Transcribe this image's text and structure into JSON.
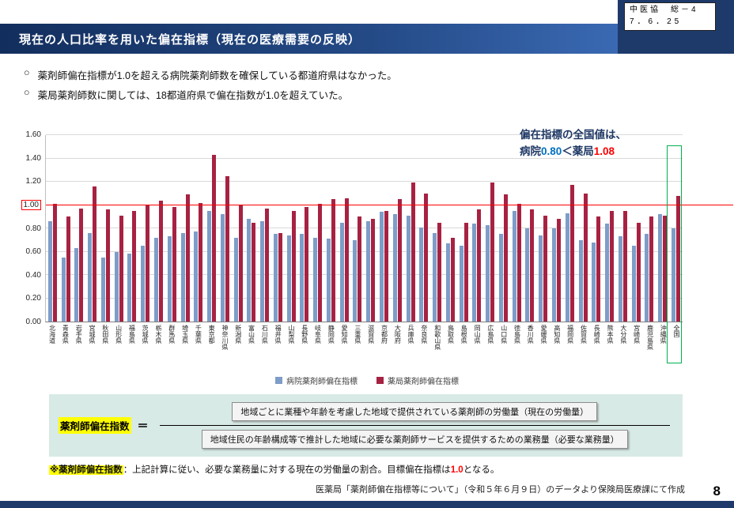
{
  "doc_ref": {
    "line1": "中医協　総－4",
    "line2": "7．6．25"
  },
  "title": "現在の人口比率を用いた偏在指標（現在の医療需要の反映）",
  "bullet_marker": "○",
  "bullets": [
    "薬剤師偏在指標が1.0を超える病院薬剤師数を確保している都道府県はなかった。",
    "薬局薬剤師数に関しては、18都道府県で偏在指数が1.0を超えていた。"
  ],
  "annotation": {
    "line1": "偏在指標の全国値は、",
    "hospital_label": "病院",
    "hospital_value": "0.80",
    "comparator": "＜",
    "pharmacy_label": "薬局",
    "pharmacy_value": "1.08"
  },
  "chart_data": {
    "type": "bar",
    "title": "",
    "xlabel": "",
    "ylabel": "",
    "ylim": [
      0,
      1.6
    ],
    "ytick_step": 0.2,
    "reference_line": 1.0,
    "grid": true,
    "legend_position": "bottom",
    "categories": [
      "北海道",
      "青森県",
      "岩手県",
      "宮城県",
      "秋田県",
      "山形県",
      "福島県",
      "茨城県",
      "栃木県",
      "群馬県",
      "埼玉県",
      "千葉県",
      "東京都",
      "神奈川県",
      "新潟県",
      "富山県",
      "石川県",
      "福井県",
      "山梨県",
      "長野県",
      "岐阜県",
      "静岡県",
      "愛知県",
      "三重県",
      "滋賀県",
      "京都府",
      "大阪府",
      "兵庫県",
      "奈良県",
      "和歌山県",
      "鳥取県",
      "島根県",
      "岡山県",
      "広島県",
      "山口県",
      "徳島県",
      "香川県",
      "愛媛県",
      "高知県",
      "福岡県",
      "佐賀県",
      "長崎県",
      "熊本県",
      "大分県",
      "宮崎県",
      "鹿児島県",
      "沖縄県",
      "全国"
    ],
    "series": [
      {
        "key": "hospital",
        "name": "病院薬剤師偏在指標",
        "color": "#7E9DC8",
        "values": [
          0.86,
          0.55,
          0.63,
          0.76,
          0.55,
          0.6,
          0.58,
          0.65,
          0.72,
          0.73,
          0.76,
          0.77,
          0.95,
          0.92,
          0.72,
          0.88,
          0.86,
          0.75,
          0.74,
          0.75,
          0.72,
          0.71,
          0.85,
          0.7,
          0.86,
          0.94,
          0.92,
          0.91,
          0.81,
          0.76,
          0.67,
          0.65,
          0.84,
          0.83,
          0.75,
          0.95,
          0.8,
          0.74,
          0.8,
          0.93,
          0.7,
          0.68,
          0.84,
          0.73,
          0.65,
          0.75,
          0.92,
          0.8
        ]
      },
      {
        "key": "pharmacy",
        "name": "薬局薬剤師偏在指標",
        "color": "#A72242",
        "values": [
          1.01,
          0.9,
          0.97,
          1.16,
          0.96,
          0.91,
          0.95,
          1.0,
          1.04,
          0.98,
          1.09,
          1.02,
          1.43,
          1.25,
          1.0,
          0.85,
          0.97,
          0.76,
          0.95,
          0.98,
          1.01,
          1.05,
          1.06,
          0.9,
          0.88,
          0.95,
          1.05,
          1.19,
          1.1,
          0.85,
          0.72,
          0.85,
          0.96,
          1.19,
          1.09,
          1.01,
          0.96,
          0.91,
          0.88,
          1.17,
          1.1,
          0.9,
          0.95,
          0.95,
          0.85,
          0.9,
          0.91,
          1.08
        ]
      }
    ]
  },
  "formula": {
    "label": "薬剤師偏在指数",
    "equals": "＝",
    "numerator": "地域ごとに業種や年齢を考慮した地域で提供されている薬剤師の労働量（現在の労働量）",
    "denominator": "地域住民の年齢構成等で推計した地域に必要な薬剤師サービスを提供するための業務量（必要な業務量）"
  },
  "note": {
    "head": "※薬剤師偏在指数",
    "body1": "：上記計算に従い、必要な業務量に対する現在の労働量の割合。目標偏在指標は",
    "target": "1.0",
    "body2": "となる。"
  },
  "source": "医薬局「薬剤師偏在指標等について」（令和５年６月９日）のデータより保険局医療課にて作成",
  "page_number": "8",
  "colors": {
    "accent_navy": "#1D3A6B",
    "bar_hospital": "#7E9DC8",
    "bar_pharmacy": "#A72242",
    "reference_red": "#FF0000",
    "bracket_green": "#00B050",
    "highlight_yellow": "#FFFF00",
    "formula_bg": "#D8EAE6",
    "value_blue": "#0070C0",
    "value_red": "#FF0000"
  }
}
